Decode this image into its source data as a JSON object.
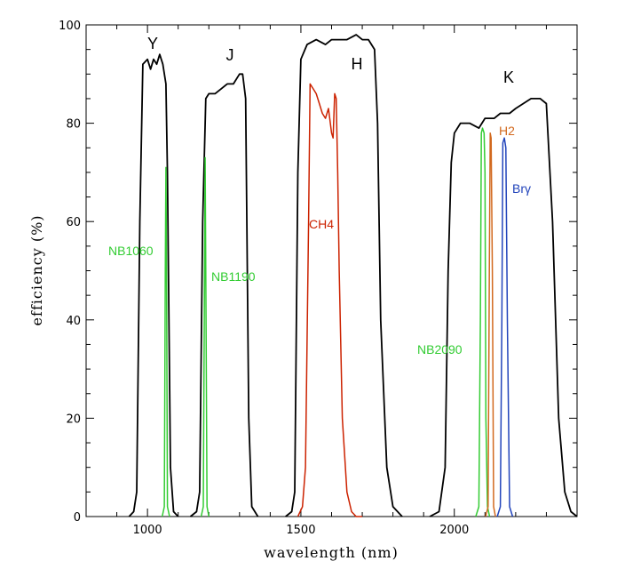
{
  "chart_data": {
    "type": "line",
    "xlabel": "wavelength (nm)",
    "ylabel": "efficiency (%)",
    "xlim": [
      800,
      2400
    ],
    "ylim": [
      0,
      100
    ],
    "x_ticks": [
      1000,
      1500,
      2000
    ],
    "y_ticks": [
      0,
      20,
      40,
      60,
      80,
      100
    ],
    "grid": false,
    "colors": {
      "broadband": "#000000",
      "nb_green": "#33cc33",
      "ch4_red": "#cc2200",
      "h2_orange": "#d2691e",
      "brg_blue": "#2244bb",
      "h2_magenta": "#cc3399"
    },
    "series": [
      {
        "name": "Y",
        "color": "#000000",
        "x": [
          940,
          955,
          965,
          975,
          985,
          1000,
          1010,
          1020,
          1030,
          1040,
          1050,
          1060,
          1065,
          1075,
          1085,
          1100
        ],
        "y": [
          0,
          1,
          5,
          60,
          92,
          93,
          91,
          93,
          92,
          94,
          92,
          88,
          70,
          10,
          1,
          0
        ]
      },
      {
        "name": "J",
        "color": "#000000",
        "x": [
          1140,
          1160,
          1170,
          1180,
          1190,
          1200,
          1220,
          1240,
          1260,
          1280,
          1300,
          1310,
          1320,
          1330,
          1340,
          1360
        ],
        "y": [
          0,
          1,
          5,
          60,
          85,
          86,
          86,
          87,
          88,
          88,
          90,
          90,
          85,
          20,
          2,
          0
        ]
      },
      {
        "name": "H",
        "color": "#000000",
        "x": [
          1450,
          1470,
          1480,
          1490,
          1500,
          1520,
          1550,
          1580,
          1600,
          1650,
          1680,
          1700,
          1720,
          1740,
          1750,
          1760,
          1780,
          1800,
          1830
        ],
        "y": [
          0,
          1,
          5,
          70,
          93,
          96,
          97,
          96,
          97,
          97,
          98,
          97,
          97,
          95,
          80,
          40,
          10,
          2,
          0
        ]
      },
      {
        "name": "K",
        "color": "#000000",
        "x": [
          1920,
          1950,
          1970,
          1980,
          1990,
          2000,
          2020,
          2050,
          2080,
          2100,
          2130,
          2150,
          2180,
          2200,
          2250,
          2280,
          2300,
          2320,
          2340,
          2360,
          2380,
          2400
        ],
        "y": [
          0,
          1,
          10,
          50,
          72,
          78,
          80,
          80,
          79,
          81,
          81,
          82,
          82,
          83,
          85,
          85,
          84,
          60,
          20,
          5,
          1,
          0
        ]
      },
      {
        "name": "NB1060",
        "color": "#33cc33",
        "x": [
          1048,
          1055,
          1058,
          1060,
          1062,
          1065,
          1072
        ],
        "y": [
          0,
          2,
          50,
          71,
          50,
          2,
          0
        ]
      },
      {
        "name": "NB1190",
        "color": "#33cc33",
        "x": [
          1175,
          1182,
          1186,
          1188,
          1190,
          1194,
          1200
        ],
        "y": [
          0,
          2,
          50,
          73,
          50,
          2,
          0
        ]
      },
      {
        "name": "CH4",
        "color": "#cc2200",
        "x": [
          1490,
          1505,
          1515,
          1525,
          1530,
          1540,
          1550,
          1560,
          1570,
          1580,
          1590,
          1600,
          1605,
          1610,
          1615,
          1620,
          1625,
          1635,
          1650,
          1665,
          1680,
          1700
        ],
        "y": [
          0,
          2,
          10,
          60,
          88,
          87,
          86,
          84,
          82,
          81,
          83,
          78,
          77,
          86,
          85,
          70,
          50,
          20,
          5,
          1,
          0,
          0
        ]
      },
      {
        "name": "NB2090",
        "color": "#33cc33",
        "x": [
          2070,
          2080,
          2085,
          2088,
          2092,
          2097,
          2100,
          2103,
          2108,
          2115
        ],
        "y": [
          0,
          2,
          40,
          78,
          79,
          78,
          70,
          20,
          2,
          0
        ]
      },
      {
        "name": "H2",
        "color": "#d2691e",
        "x": [
          2102,
          2110,
          2114,
          2117,
          2120,
          2124,
          2128,
          2134
        ],
        "y": [
          0,
          2,
          50,
          78,
          77,
          50,
          2,
          0
        ]
      },
      {
        "name": "Brγ",
        "color": "#2244bb",
        "x": [
          2140,
          2150,
          2155,
          2158,
          2163,
          2168,
          2173,
          2180,
          2190
        ],
        "y": [
          0,
          2,
          40,
          76,
          77,
          75,
          40,
          2,
          0
        ]
      }
    ]
  },
  "labels": {
    "Y": "Y",
    "J": "J",
    "H": "H",
    "K": "K",
    "NB1060": "NB1060",
    "NB1190": "NB1190",
    "CH4": "CH4",
    "NB2090": "NB2090",
    "H2": "H2",
    "Brg": "Brγ"
  }
}
